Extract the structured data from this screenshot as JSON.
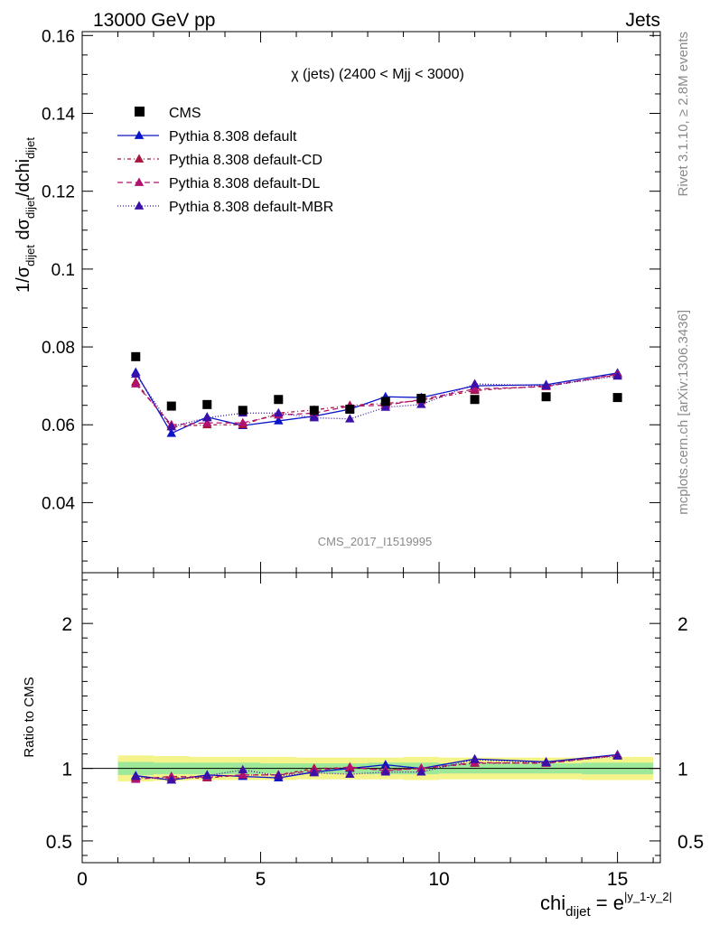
{
  "header": {
    "left": "13000 GeV pp",
    "right": "Jets"
  },
  "side_labels": {
    "rivet": "Rivet 3.1.10, ≥ 2.8M events",
    "mcplots": "mcplots.cern.ch [arXiv:1306.3436]"
  },
  "chart_data": [
    {
      "type": "scatter",
      "title": "χ (jets) (2400 < Mjj < 3000)",
      "ylabel": {
        "main": "1/σ",
        "sub1": "dijet",
        "mid": " dσ",
        "sub2": "dijet",
        "tail": "/dchi",
        "sub3": "dijet"
      },
      "watermark": "CMS_2017_I1519995",
      "xlim": [
        0,
        16.2
      ],
      "ylim": [
        0.022,
        0.161
      ],
      "yticks": [
        0.04,
        0.06,
        0.08,
        0.1,
        0.12,
        0.14,
        0.16
      ],
      "ytick_labels": [
        "0.04",
        "0.06",
        "0.08",
        "0.1",
        "0.12",
        "0.14",
        "0.16"
      ],
      "x": [
        1.5,
        2.5,
        3.5,
        4.5,
        5.5,
        6.5,
        7.5,
        8.5,
        9.5,
        11,
        13,
        15
      ],
      "data_series": {
        "name": "CMS",
        "values": [
          0.0775,
          0.0648,
          0.0652,
          0.0637,
          0.0665,
          0.0637,
          0.064,
          0.066,
          0.0668,
          0.0665,
          0.0672,
          0.067
        ]
      },
      "series": [
        {
          "name": "Pythia 8.308 default",
          "color": "#0a14c8",
          "dash": "",
          "values": [
            0.0735,
            0.0578,
            0.062,
            0.0598,
            0.061,
            0.0622,
            0.064,
            0.0672,
            0.067,
            0.07,
            0.0703,
            0.0733
          ]
        },
        {
          "name": "Pythia 8.308 default-CD",
          "color": "#a8143c",
          "dash": "4,3,1,3",
          "values": [
            0.071,
            0.0595,
            0.06,
            0.06,
            0.063,
            0.0638,
            0.065,
            0.0655,
            0.0662,
            0.0688,
            0.07,
            0.0728
          ]
        },
        {
          "name": "Pythia 8.308 default-DL",
          "color": "#b0126e",
          "dash": "6,4",
          "values": [
            0.0705,
            0.06,
            0.0605,
            0.0605,
            0.0625,
            0.063,
            0.0648,
            0.065,
            0.0665,
            0.0692,
            0.0698,
            0.073
          ]
        },
        {
          "name": "Pythia 8.308 default-MBR",
          "color": "#3c10a8",
          "dash": "1,2",
          "values": [
            0.073,
            0.0595,
            0.0618,
            0.063,
            0.063,
            0.0618,
            0.0615,
            0.0645,
            0.0652,
            0.0705,
            0.07,
            0.0725
          ]
        }
      ],
      "legend": "top-left"
    },
    {
      "type": "scatter",
      "ylabel": "Ratio to CMS",
      "xlabel": {
        "main": "chi",
        "sub": "dijet",
        "mid": " = e",
        "sup": "|y_1-y_2|"
      },
      "xlim": [
        0,
        16.2
      ],
      "ylim": [
        0.35,
        2.35
      ],
      "xticks": [
        0,
        5,
        10,
        15
      ],
      "xtick_labels": [
        "0",
        "5",
        "10",
        "15"
      ],
      "yticks": [
        0.5,
        1,
        2
      ],
      "ytick_labels": [
        "0.5",
        "1",
        "2"
      ],
      "x": [
        1.5,
        2.5,
        3.5,
        4.5,
        5.5,
        6.5,
        7.5,
        8.5,
        9.5,
        11,
        13,
        15
      ],
      "bands": {
        "x_edges": [
          1,
          2,
          3,
          4,
          5,
          6,
          7,
          8,
          9,
          10,
          12,
          14,
          16
        ],
        "outer_half_width": [
          0.09,
          0.085,
          0.08,
          0.08,
          0.08,
          0.075,
          0.075,
          0.075,
          0.08,
          0.075,
          0.075,
          0.08
        ],
        "inner_half_width": [
          0.045,
          0.04,
          0.04,
          0.04,
          0.035,
          0.035,
          0.035,
          0.04,
          0.04,
          0.035,
          0.035,
          0.04
        ]
      },
      "series": [
        {
          "name": "Pythia 8.308 default",
          "values": [
            0.95,
            0.92,
            0.955,
            0.945,
            0.935,
            0.975,
            1.0,
            1.025,
            1.0,
            1.065,
            1.045,
            1.095
          ]
        },
        {
          "name": "Pythia 8.308 default-CD",
          "values": [
            0.935,
            0.935,
            0.935,
            0.955,
            0.955,
            1.0,
            1.005,
            0.99,
            1.0,
            1.035,
            1.04,
            1.09
          ]
        },
        {
          "name": "Pythia 8.308 default-DL",
          "values": [
            0.925,
            0.945,
            0.94,
            0.955,
            0.955,
            0.985,
            1.01,
            0.985,
            1.0,
            1.04,
            1.035,
            1.09
          ]
        },
        {
          "name": "Pythia 8.308 default-MBR",
          "values": [
            0.945,
            0.92,
            0.95,
            0.99,
            0.95,
            0.97,
            0.96,
            0.975,
            0.975,
            1.06,
            1.04,
            1.085
          ]
        }
      ]
    }
  ]
}
